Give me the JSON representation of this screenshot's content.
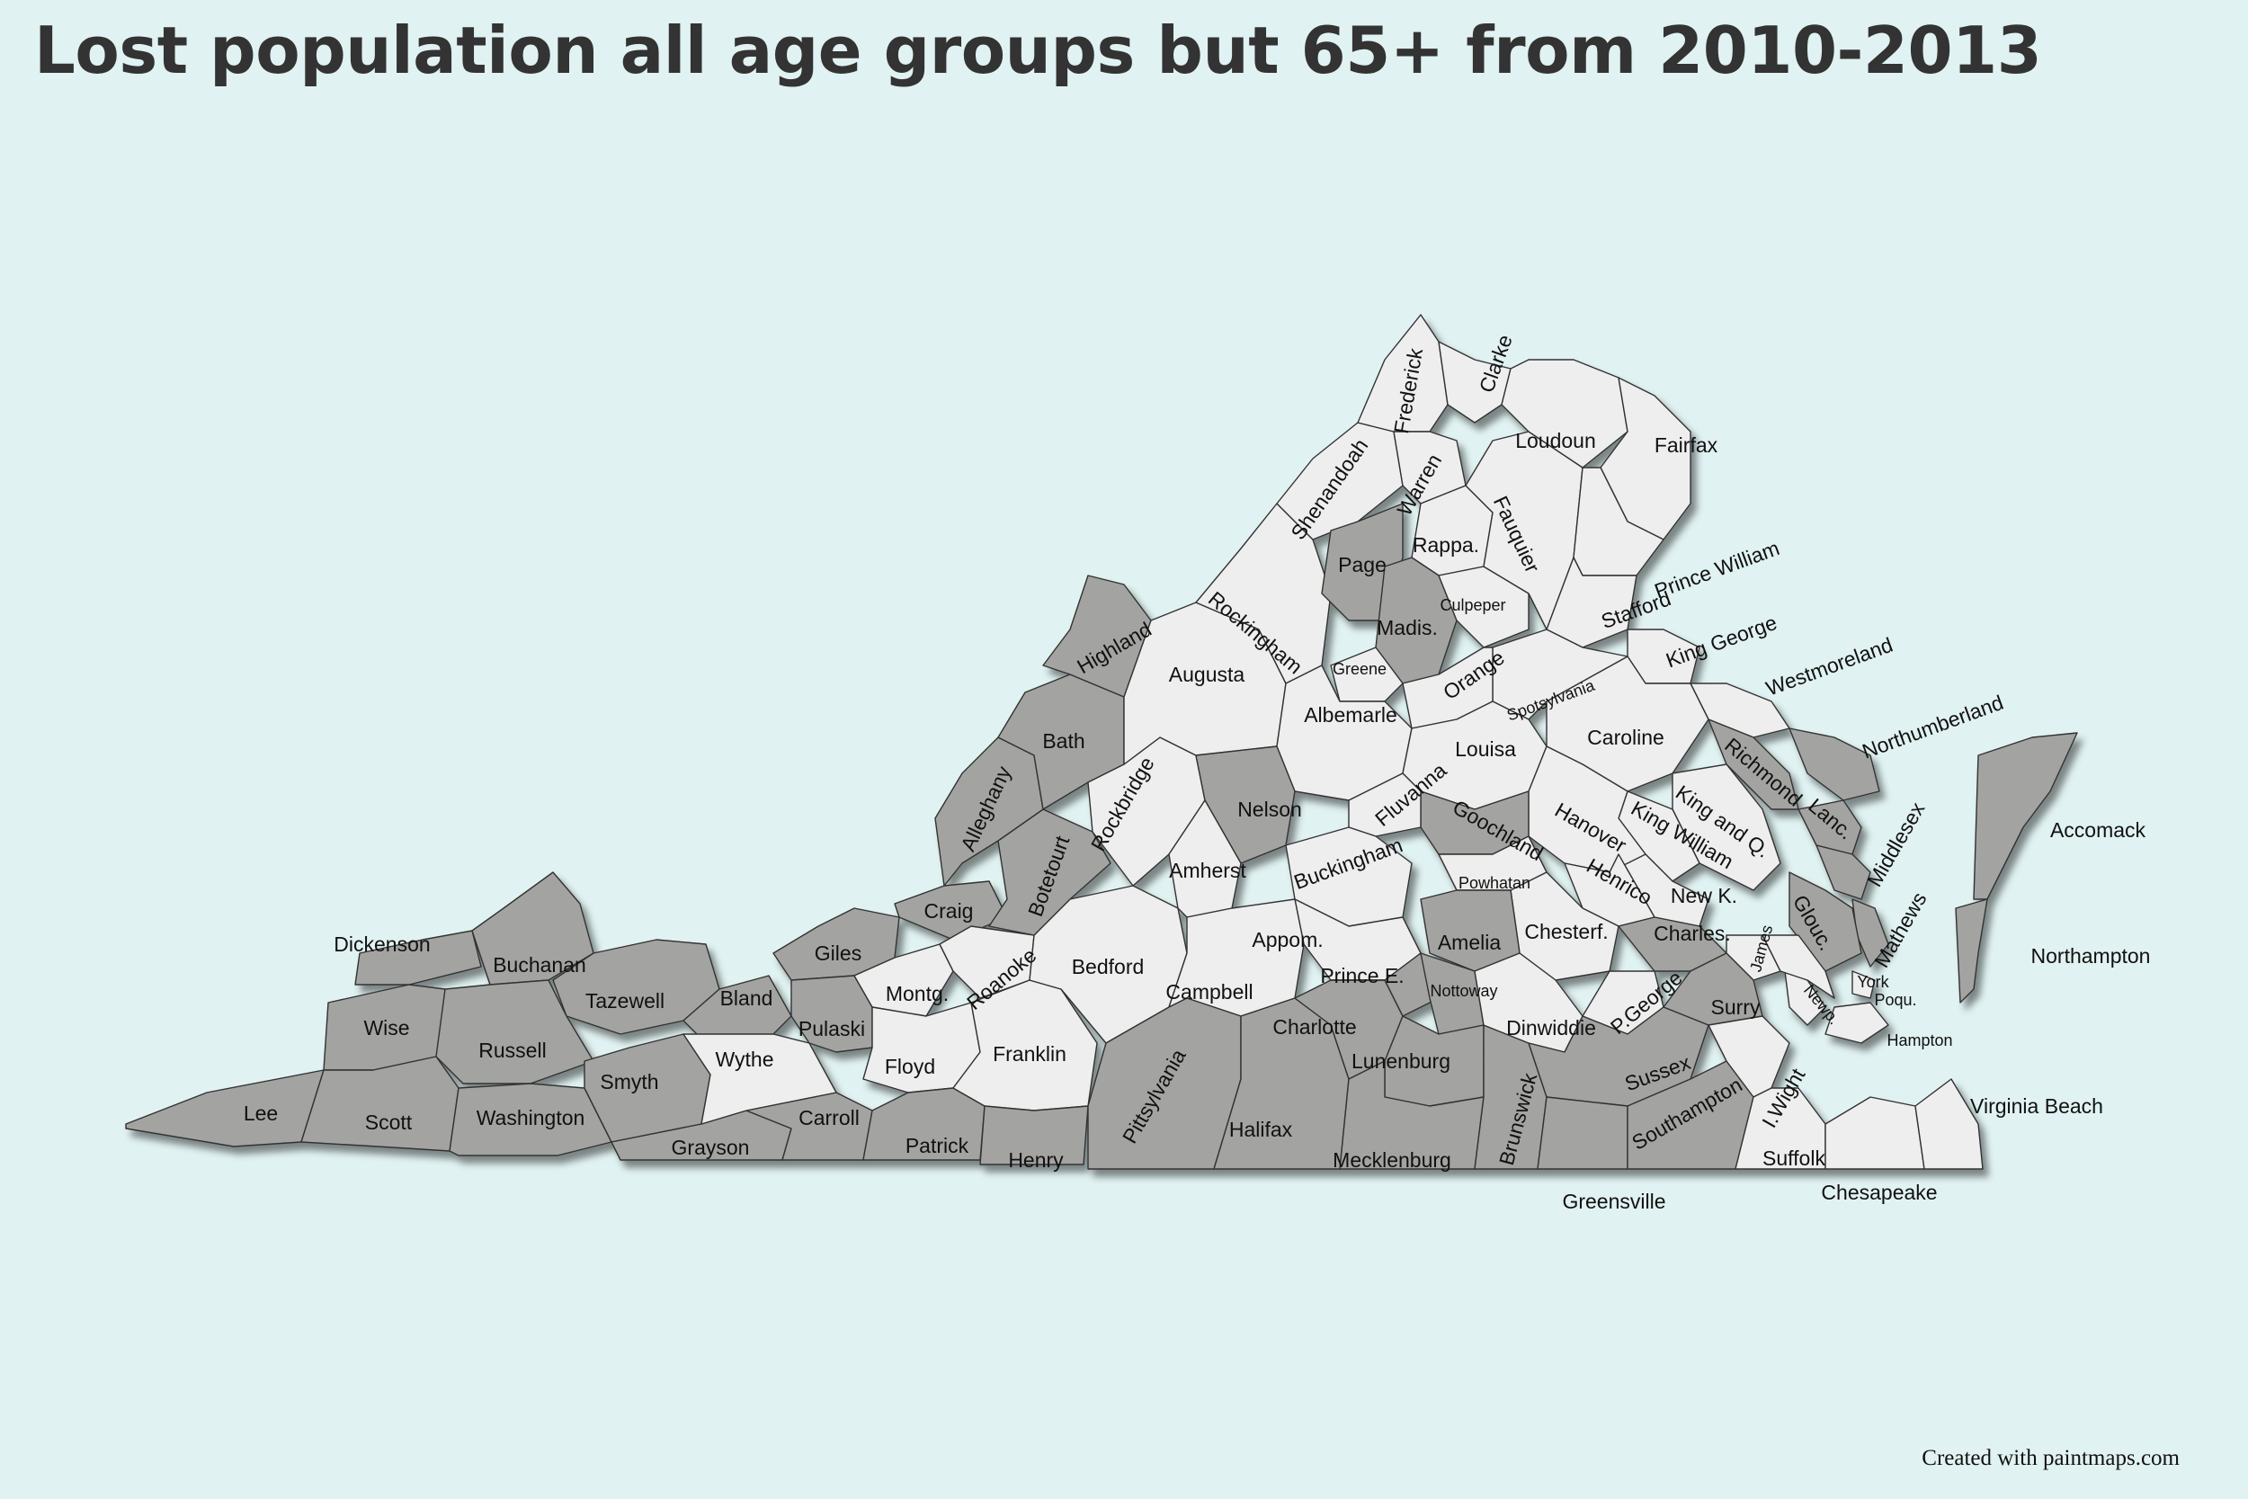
{
  "title": "Lost population all age groups but 65+ from 2010-2013",
  "credit": "Created with paintmaps.com",
  "colors": {
    "background": "#e0f2f1",
    "lost_population": "#a3a3a1",
    "other": "#eeeeee",
    "border": "#333333"
  },
  "counties": [
    {
      "name": "Dickenson",
      "lost": true
    },
    {
      "name": "Buchanan",
      "lost": true
    },
    {
      "name": "Wise",
      "lost": true
    },
    {
      "name": "Tazewell",
      "lost": true
    },
    {
      "name": "Russell",
      "lost": true
    },
    {
      "name": "Lee",
      "lost": true
    },
    {
      "name": "Scott",
      "lost": true
    },
    {
      "name": "Washington",
      "lost": true
    },
    {
      "name": "Smyth",
      "lost": true
    },
    {
      "name": "Bland",
      "lost": true
    },
    {
      "name": "Giles",
      "lost": true
    },
    {
      "name": "Grayson",
      "lost": true
    },
    {
      "name": "Carroll",
      "lost": true
    },
    {
      "name": "Wythe",
      "lost": false
    },
    {
      "name": "Pulaski",
      "lost": true
    },
    {
      "name": "Craig",
      "lost": true
    },
    {
      "name": "Montg.",
      "lost": false
    },
    {
      "name": "Roanoke",
      "lost": false
    },
    {
      "name": "Floyd",
      "lost": false
    },
    {
      "name": "Patrick",
      "lost": true
    },
    {
      "name": "Franklin",
      "lost": false
    },
    {
      "name": "Henry",
      "lost": true
    },
    {
      "name": "Bedford",
      "lost": false
    },
    {
      "name": "Botetourt",
      "lost": true
    },
    {
      "name": "Alleghany",
      "lost": true
    },
    {
      "name": "Bath",
      "lost": true
    },
    {
      "name": "Highland",
      "lost": true
    },
    {
      "name": "Rockbridge",
      "lost": false
    },
    {
      "name": "Augusta",
      "lost": false
    },
    {
      "name": "Rockingham",
      "lost": false
    },
    {
      "name": "Shenandoah",
      "lost": false
    },
    {
      "name": "Frederick",
      "lost": false
    },
    {
      "name": "Clarke",
      "lost": false
    },
    {
      "name": "Warren",
      "lost": false
    },
    {
      "name": "Page",
      "lost": true
    },
    {
      "name": "Rappa.",
      "lost": false
    },
    {
      "name": "Madis.",
      "lost": true
    },
    {
      "name": "Culpeper",
      "lost": false
    },
    {
      "name": "Fauquier",
      "lost": false
    },
    {
      "name": "Loudoun",
      "lost": false
    },
    {
      "name": "Fairfax",
      "lost": false
    },
    {
      "name": "Prince William",
      "lost": false
    },
    {
      "name": "Stafford",
      "lost": false
    },
    {
      "name": "King George",
      "lost": false
    },
    {
      "name": "Westmoreland",
      "lost": false
    },
    {
      "name": "Northumberland",
      "lost": true
    },
    {
      "name": "Richmond",
      "lost": true
    },
    {
      "name": "Lanc.",
      "lost": true
    },
    {
      "name": "Middlesex",
      "lost": true
    },
    {
      "name": "Mathews",
      "lost": true
    },
    {
      "name": "Glouc.",
      "lost": true
    },
    {
      "name": "King and Q.",
      "lost": false
    },
    {
      "name": "King William",
      "lost": false
    },
    {
      "name": "New K.",
      "lost": false
    },
    {
      "name": "Caroline",
      "lost": false
    },
    {
      "name": "Spotsylvania",
      "lost": false
    },
    {
      "name": "Orange",
      "lost": false
    },
    {
      "name": "Greene",
      "lost": false
    },
    {
      "name": "Albemarle",
      "lost": false
    },
    {
      "name": "Louisa",
      "lost": false
    },
    {
      "name": "Hanover",
      "lost": false
    },
    {
      "name": "Henrico",
      "lost": false
    },
    {
      "name": "Goochland",
      "lost": true
    },
    {
      "name": "Fluvanna",
      "lost": false
    },
    {
      "name": "Nelson",
      "lost": true
    },
    {
      "name": "Amherst",
      "lost": false
    },
    {
      "name": "Buckingham",
      "lost": false
    },
    {
      "name": "Powhatan",
      "lost": false
    },
    {
      "name": "Chesterf.",
      "lost": false
    },
    {
      "name": "Amelia",
      "lost": true
    },
    {
      "name": "Appom.",
      "lost": false
    },
    {
      "name": "Campbell",
      "lost": false
    },
    {
      "name": "Pittsylvania",
      "lost": true
    },
    {
      "name": "Halifax",
      "lost": true
    },
    {
      "name": "Charlotte",
      "lost": true
    },
    {
      "name": "Prince E.",
      "lost": true
    },
    {
      "name": "Nottoway",
      "lost": true
    },
    {
      "name": "Lunenburg",
      "lost": true
    },
    {
      "name": "Mecklenburg",
      "lost": true
    },
    {
      "name": "Brunswick",
      "lost": true
    },
    {
      "name": "Dinwiddie",
      "lost": false
    },
    {
      "name": "P.George",
      "lost": false
    },
    {
      "name": "Charles.",
      "lost": true
    },
    {
      "name": "James",
      "lost": false
    },
    {
      "name": "Surry",
      "lost": true
    },
    {
      "name": "Sussex",
      "lost": true
    },
    {
      "name": "Greensville",
      "lost": true
    },
    {
      "name": "Southampton",
      "lost": true
    },
    {
      "name": "I.Wight",
      "lost": false
    },
    {
      "name": "Suffolk",
      "lost": false
    },
    {
      "name": "Chesapeake",
      "lost": false
    },
    {
      "name": "Virginia Beach",
      "lost": false
    },
    {
      "name": "Newp.",
      "lost": false
    },
    {
      "name": "Hampton",
      "lost": false
    },
    {
      "name": "York",
      "lost": false
    },
    {
      "name": "Poqu.",
      "lost": false
    },
    {
      "name": "Accomack",
      "lost": true
    },
    {
      "name": "Northampton",
      "lost": true
    }
  ]
}
